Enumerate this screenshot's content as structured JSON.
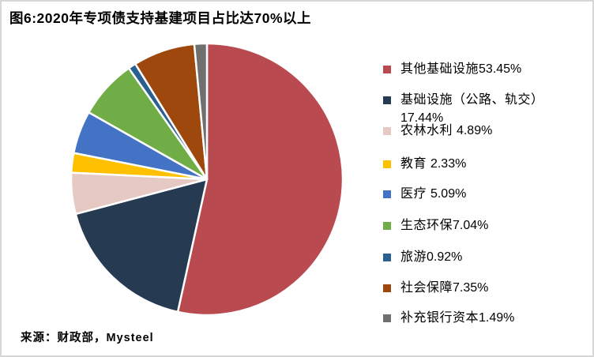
{
  "title": "图6:2020年专项债支持基建项目占比达70%以上",
  "source": "来源：财政部，Mysteel",
  "chart_data": {
    "type": "pie",
    "title": "图6:2020年专项债支持基建项目占比达70%以上",
    "start_angle_deg": 0,
    "direction": "clockwise",
    "legend_position": "right",
    "categories": [
      "其他基础设施",
      "基础设施（公路、轨交）",
      "农林水利",
      "教育",
      "医疗",
      "生态环保",
      "旅游",
      "社会保障",
      "补充银行资本"
    ],
    "values": [
      53.45,
      17.44,
      4.89,
      2.33,
      5.09,
      7.04,
      0.92,
      7.35,
      1.49
    ],
    "colors": [
      "#b94b50",
      "#263a52",
      "#e5c9c2",
      "#ffc000",
      "#4472c4",
      "#70ad47",
      "#2a5f8f",
      "#9e480e",
      "#6f6f6f"
    ],
    "legend": [
      {
        "label": "其他基础设施",
        "pct": "53.45%"
      },
      {
        "label": "基础设施（公路、轨交）",
        "pct": "17.44%"
      },
      {
        "label": "农林水利 ",
        "pct": "4.89%"
      },
      {
        "label": "教育 ",
        "pct": "2.33%"
      },
      {
        "label": "医疗 ",
        "pct": "5.09%"
      },
      {
        "label": "生态环保",
        "pct": "7.04%"
      },
      {
        "label": "旅游",
        "pct": "0.92%"
      },
      {
        "label": "社会保障",
        "pct": "7.35%"
      },
      {
        "label": "补充银行资本",
        "pct": "1.49%"
      }
    ]
  }
}
